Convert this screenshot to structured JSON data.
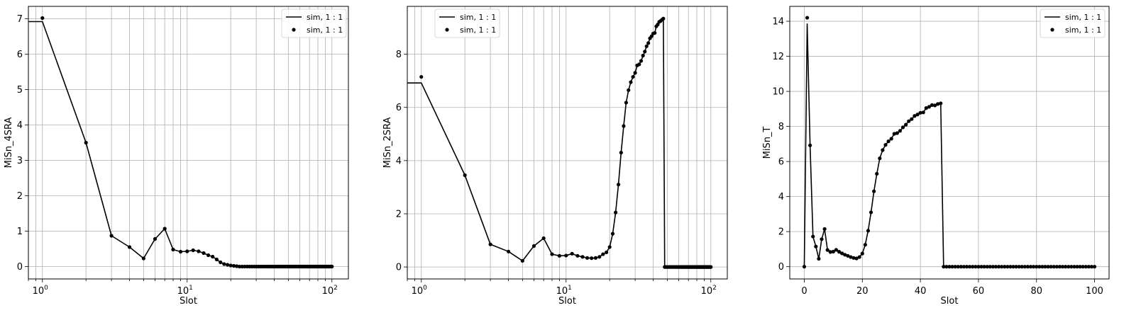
{
  "chart_data": [
    {
      "type": "line",
      "xscale": "log",
      "xlabel": "Slot",
      "ylabel": "MiSn_4SRA",
      "xlim": [
        0.8,
        130
      ],
      "ylim": [
        -0.35,
        7.35
      ],
      "yticks": [
        0,
        1,
        2,
        3,
        4,
        5,
        6,
        7
      ],
      "xticks": [
        {
          "value": 1,
          "base": "10",
          "exp": "0"
        },
        {
          "value": 10,
          "base": "10",
          "exp": "1"
        },
        {
          "value": 100,
          "base": "10",
          "exp": "2"
        }
      ],
      "grid": true,
      "legend_position": "top-right",
      "legend": [
        "sim, 1 : 1",
        "sim, 1 : 1"
      ],
      "series": [
        {
          "name": "sim, 1 : 1",
          "style": "line",
          "points": [
            [
              0.5,
              6.92
            ],
            [
              1,
              6.92
            ],
            [
              2,
              3.5
            ],
            [
              3,
              0.87
            ],
            [
              4,
              0.55
            ],
            [
              5,
              0.23
            ],
            [
              6,
              0.78
            ],
            [
              7,
              1.07
            ],
            [
              8,
              0.48
            ],
            [
              9,
              0.42
            ],
            [
              10,
              0.43
            ],
            [
              11,
              0.46
            ],
            [
              12,
              0.43
            ],
            [
              13,
              0.38
            ],
            [
              14,
              0.32
            ],
            [
              15,
              0.28
            ],
            [
              16,
              0.2
            ],
            [
              17,
              0.12
            ],
            [
              18,
              0.07
            ],
            [
              19,
              0.05
            ],
            [
              20,
              0.03
            ],
            [
              21,
              0.02
            ],
            [
              22,
              0.01
            ],
            [
              23,
              0.0
            ],
            [
              100,
              0.0
            ]
          ]
        },
        {
          "name": "sim, 1 : 1",
          "style": "markers",
          "points": [
            [
              1,
              7.02
            ],
            [
              2,
              3.5
            ],
            [
              3,
              0.87
            ],
            [
              4,
              0.55
            ],
            [
              5,
              0.23
            ],
            [
              6,
              0.78
            ],
            [
              7,
              1.07
            ],
            [
              8,
              0.48
            ],
            [
              9,
              0.42
            ],
            [
              10,
              0.43
            ],
            [
              11,
              0.46
            ],
            [
              12,
              0.43
            ],
            [
              13,
              0.38
            ],
            [
              14,
              0.32
            ],
            [
              15,
              0.28
            ],
            [
              16,
              0.2
            ],
            [
              17,
              0.12
            ],
            [
              18,
              0.07
            ],
            [
              19,
              0.05
            ],
            [
              20,
              0.03
            ],
            [
              21,
              0.02
            ],
            [
              22,
              0.01
            ]
          ],
          "zero_from": 23,
          "zero_to": 100
        }
      ]
    },
    {
      "type": "line",
      "xscale": "log",
      "xlabel": "Slot",
      "ylabel": "MiSn_2SRA",
      "xlim": [
        0.8,
        130
      ],
      "ylim": [
        -0.45,
        9.8
      ],
      "yticks": [
        0,
        2,
        4,
        6,
        8
      ],
      "xticks": [
        {
          "value": 1,
          "base": "10",
          "exp": "0"
        },
        {
          "value": 10,
          "base": "10",
          "exp": "1"
        },
        {
          "value": 100,
          "base": "10",
          "exp": "2"
        }
      ],
      "grid": true,
      "legend_position": "top-left",
      "legend": [
        "sim, 1 : 1",
        "sim, 1 : 1"
      ],
      "series": [
        {
          "name": "sim, 1 : 1",
          "style": "line",
          "points": [
            [
              0.5,
              6.92
            ],
            [
              1,
              6.92
            ],
            [
              2,
              3.45
            ],
            [
              3,
              0.85
            ],
            [
              4,
              0.58
            ],
            [
              5,
              0.23
            ],
            [
              6,
              0.79
            ],
            [
              7,
              1.08
            ],
            [
              8,
              0.48
            ],
            [
              9,
              0.42
            ],
            [
              10,
              0.43
            ],
            [
              11,
              0.5
            ],
            [
              12,
              0.42
            ],
            [
              13,
              0.38
            ],
            [
              14,
              0.34
            ],
            [
              15,
              0.33
            ],
            [
              16,
              0.34
            ],
            [
              17,
              0.38
            ],
            [
              18,
              0.48
            ],
            [
              19,
              0.55
            ],
            [
              20,
              0.75
            ],
            [
              21,
              1.25
            ],
            [
              22,
              2.05
            ],
            [
              23,
              3.1
            ],
            [
              24,
              4.3
            ],
            [
              25,
              5.3
            ],
            [
              26,
              6.18
            ],
            [
              27,
              6.65
            ],
            [
              28,
              6.95
            ],
            [
              29,
              7.15
            ],
            [
              30,
              7.3
            ],
            [
              31,
              7.58
            ],
            [
              32,
              7.62
            ],
            [
              33,
              7.75
            ],
            [
              34,
              7.95
            ],
            [
              35,
              8.1
            ],
            [
              36,
              8.3
            ],
            [
              37,
              8.42
            ],
            [
              38,
              8.6
            ],
            [
              39,
              8.68
            ],
            [
              40,
              8.78
            ],
            [
              41,
              8.8
            ],
            [
              42,
              9.05
            ],
            [
              43,
              9.12
            ],
            [
              44,
              9.22
            ],
            [
              45,
              9.25
            ],
            [
              46,
              9.3
            ],
            [
              47,
              9.34
            ],
            [
              48,
              0.0
            ],
            [
              100,
              0.0
            ]
          ]
        },
        {
          "name": "sim, 1 : 1",
          "style": "markers",
          "points": [
            [
              1,
              7.15
            ],
            [
              2,
              3.45
            ],
            [
              3,
              0.85
            ],
            [
              4,
              0.58
            ],
            [
              5,
              0.23
            ],
            [
              6,
              0.79
            ],
            [
              7,
              1.08
            ],
            [
              8,
              0.48
            ],
            [
              9,
              0.42
            ],
            [
              10,
              0.43
            ],
            [
              11,
              0.5
            ],
            [
              12,
              0.42
            ],
            [
              13,
              0.38
            ],
            [
              14,
              0.34
            ],
            [
              15,
              0.33
            ],
            [
              16,
              0.34
            ],
            [
              17,
              0.38
            ],
            [
              18,
              0.48
            ],
            [
              19,
              0.55
            ],
            [
              20,
              0.75
            ],
            [
              21,
              1.25
            ],
            [
              22,
              2.05
            ],
            [
              23,
              3.1
            ],
            [
              24,
              4.3
            ],
            [
              25,
              5.3
            ],
            [
              26,
              6.18
            ],
            [
              27,
              6.65
            ],
            [
              28,
              6.95
            ],
            [
              29,
              7.15
            ],
            [
              30,
              7.3
            ],
            [
              31,
              7.58
            ],
            [
              32,
              7.62
            ],
            [
              33,
              7.75
            ],
            [
              34,
              7.95
            ],
            [
              35,
              8.1
            ],
            [
              36,
              8.3
            ],
            [
              37,
              8.42
            ],
            [
              38,
              8.6
            ],
            [
              39,
              8.68
            ],
            [
              40,
              8.78
            ],
            [
              41,
              8.8
            ],
            [
              42,
              9.05
            ],
            [
              43,
              9.12
            ],
            [
              44,
              9.22
            ],
            [
              45,
              9.25
            ],
            [
              46,
              9.3
            ],
            [
              47,
              9.34
            ]
          ],
          "zero_from": 48,
          "zero_to": 100
        }
      ]
    },
    {
      "type": "line",
      "xscale": "linear",
      "xlabel": "Slot",
      "ylabel": "MiSn_T",
      "xlim": [
        -5,
        105
      ],
      "ylim": [
        -0.7,
        14.85
      ],
      "yticks": [
        0,
        2,
        4,
        6,
        8,
        10,
        12,
        14
      ],
      "xticks": [
        {
          "value": 0,
          "text": "0"
        },
        {
          "value": 20,
          "text": "20"
        },
        {
          "value": 40,
          "text": "40"
        },
        {
          "value": 60,
          "text": "60"
        },
        {
          "value": 80,
          "text": "80"
        },
        {
          "value": 100,
          "text": "100"
        }
      ],
      "grid": true,
      "legend_position": "top-right",
      "legend": [
        "sim, 1 : 1",
        "sim, 1 : 1"
      ],
      "series": [
        {
          "name": "sim, 1 : 1",
          "style": "line",
          "points": [
            [
              0,
              0
            ],
            [
              1,
              13.85
            ],
            [
              2,
              6.92
            ],
            [
              3,
              1.72
            ],
            [
              4,
              1.15
            ],
            [
              5,
              0.45
            ],
            [
              6,
              1.57
            ],
            [
              7,
              2.15
            ],
            [
              8,
              0.95
            ],
            [
              9,
              0.84
            ],
            [
              10,
              0.86
            ],
            [
              11,
              0.96
            ],
            [
              12,
              0.85
            ],
            [
              13,
              0.76
            ],
            [
              14,
              0.68
            ],
            [
              15,
              0.62
            ],
            [
              16,
              0.55
            ],
            [
              17,
              0.5
            ],
            [
              18,
              0.47
            ],
            [
              19,
              0.55
            ],
            [
              20,
              0.75
            ],
            [
              21,
              1.25
            ],
            [
              22,
              2.05
            ],
            [
              23,
              3.1
            ],
            [
              24,
              4.3
            ],
            [
              25,
              5.3
            ],
            [
              26,
              6.18
            ],
            [
              27,
              6.65
            ],
            [
              28,
              6.95
            ],
            [
              29,
              7.15
            ],
            [
              30,
              7.3
            ],
            [
              31,
              7.58
            ],
            [
              32,
              7.62
            ],
            [
              33,
              7.75
            ],
            [
              34,
              7.95
            ],
            [
              35,
              8.1
            ],
            [
              36,
              8.3
            ],
            [
              37,
              8.42
            ],
            [
              38,
              8.6
            ],
            [
              39,
              8.68
            ],
            [
              40,
              8.78
            ],
            [
              41,
              8.8
            ],
            [
              42,
              9.05
            ],
            [
              43,
              9.12
            ],
            [
              44,
              9.22
            ],
            [
              45,
              9.2
            ],
            [
              46,
              9.28
            ],
            [
              47,
              9.32
            ],
            [
              48,
              0.0
            ],
            [
              100,
              0.0
            ]
          ]
        },
        {
          "name": "sim, 1 : 1",
          "style": "markers",
          "points": [
            [
              0,
              0
            ],
            [
              1,
              14.2
            ],
            [
              2,
              6.92
            ],
            [
              3,
              1.72
            ],
            [
              4,
              1.15
            ],
            [
              5,
              0.45
            ],
            [
              6,
              1.57
            ],
            [
              7,
              2.15
            ],
            [
              8,
              0.95
            ],
            [
              9,
              0.84
            ],
            [
              10,
              0.86
            ],
            [
              11,
              0.96
            ],
            [
              12,
              0.85
            ],
            [
              13,
              0.76
            ],
            [
              14,
              0.68
            ],
            [
              15,
              0.62
            ],
            [
              16,
              0.55
            ],
            [
              17,
              0.5
            ],
            [
              18,
              0.47
            ],
            [
              19,
              0.55
            ],
            [
              20,
              0.75
            ],
            [
              21,
              1.25
            ],
            [
              22,
              2.05
            ],
            [
              23,
              3.1
            ],
            [
              24,
              4.3
            ],
            [
              25,
              5.3
            ],
            [
              26,
              6.18
            ],
            [
              27,
              6.65
            ],
            [
              28,
              6.95
            ],
            [
              29,
              7.15
            ],
            [
              30,
              7.3
            ],
            [
              31,
              7.58
            ],
            [
              32,
              7.62
            ],
            [
              33,
              7.75
            ],
            [
              34,
              7.95
            ],
            [
              35,
              8.1
            ],
            [
              36,
              8.3
            ],
            [
              37,
              8.42
            ],
            [
              38,
              8.6
            ],
            [
              39,
              8.68
            ],
            [
              40,
              8.78
            ],
            [
              41,
              8.8
            ],
            [
              42,
              9.05
            ],
            [
              43,
              9.12
            ],
            [
              44,
              9.22
            ],
            [
              45,
              9.2
            ],
            [
              46,
              9.28
            ],
            [
              47,
              9.32
            ]
          ],
          "zero_from": 48,
          "zero_to": 100
        }
      ]
    }
  ]
}
